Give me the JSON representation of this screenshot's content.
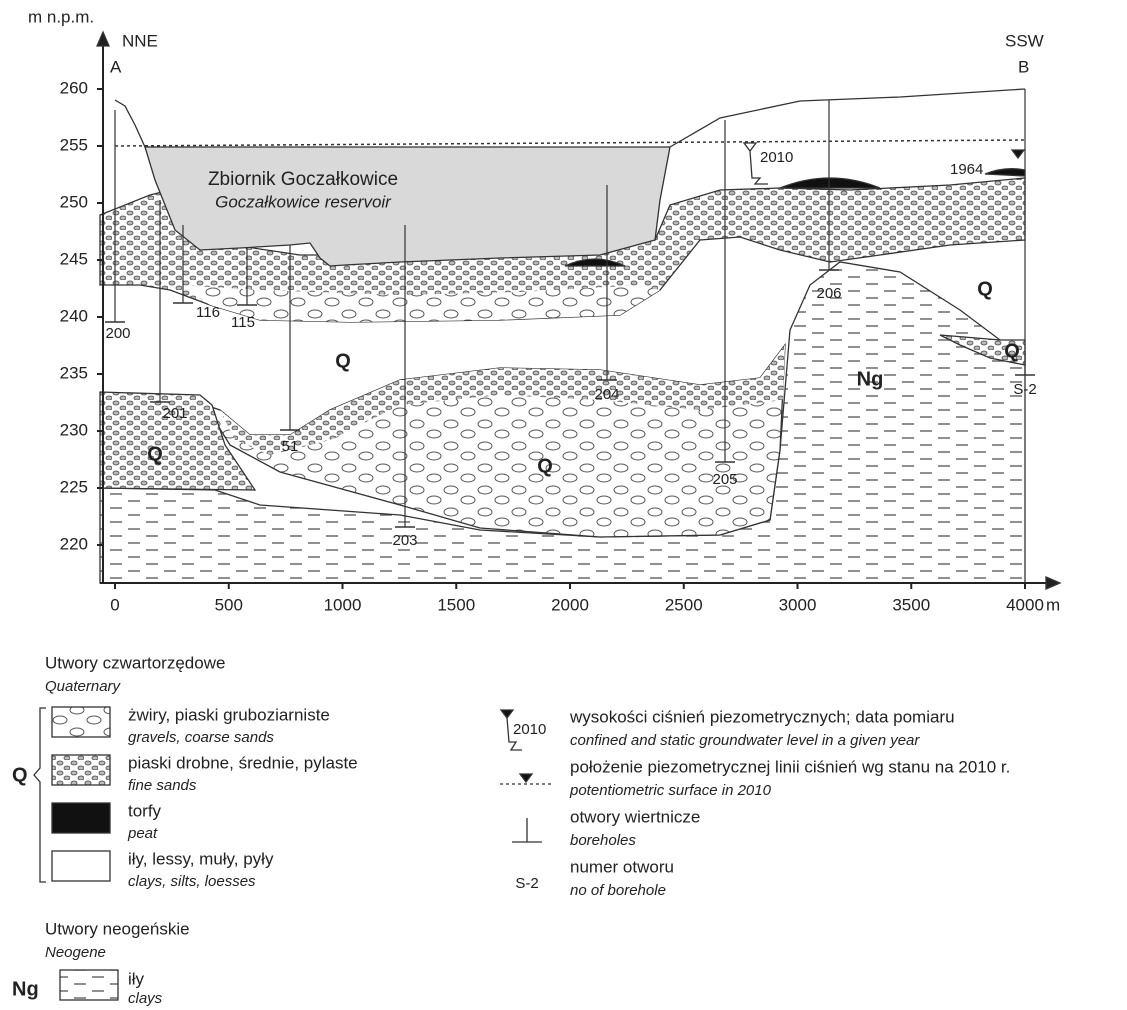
{
  "axes": {
    "y_title": "m n.p.m.",
    "x_unit": "m",
    "yticks": [
      220,
      225,
      230,
      235,
      240,
      245,
      250,
      255,
      260
    ],
    "xticks": [
      0,
      500,
      1000,
      1500,
      2000,
      2500,
      3000,
      3500,
      4000
    ]
  },
  "section": {
    "start": {
      "label": "A",
      "direction": "NNE"
    },
    "end": {
      "label": "B",
      "direction": "SSW"
    },
    "reservoir": {
      "name": "Zbiornik Goczałkowice",
      "name_en": "Goczałkowice reservoir"
    },
    "unit_labels": [
      "Q",
      "Q",
      "Q",
      "Q",
      "Q",
      "Ng"
    ],
    "water_years": [
      "2010",
      "1964"
    ],
    "boreholes": [
      "200",
      "116",
      "115",
      "201",
      "51",
      "203",
      "204",
      "205",
      "206",
      "S-2"
    ]
  },
  "legend": {
    "quaternary": {
      "title": "Utwory czwartorzędowe",
      "title_en": "Quaternary",
      "symbol": "Q",
      "items": [
        {
          "label": "żwiry, piaski gruboziarniste",
          "label_en": "gravels, coarse sands"
        },
        {
          "label": "piaski drobne, średnie, pylaste",
          "label_en": "fine sands"
        },
        {
          "label": "torfy",
          "label_en": "peat"
        },
        {
          "label": "iły, lessy, muły, pyły",
          "label_en": "clays, silts, loesses"
        }
      ]
    },
    "neogene": {
      "title": "Utwory neogeńskie",
      "title_en": "Neogene",
      "symbol": "Ng",
      "items": [
        {
          "label": "iły",
          "label_en": "clays"
        }
      ]
    },
    "symbols": [
      {
        "sample": "2010",
        "label": "wysokości ciśnień piezometrycznych; data pomiaru",
        "label_en": "confined and static groundwater level in a given year"
      },
      {
        "label": "położenie piezometrycznej linii ciśnień wg stanu na 2010 r.",
        "label_en": "potentiometric surface in 2010"
      },
      {
        "label": "otwory wiertnicze",
        "label_en": "boreholes"
      },
      {
        "sample": "S-2",
        "label": "numer otworu",
        "label_en": "no of borehole"
      }
    ]
  }
}
